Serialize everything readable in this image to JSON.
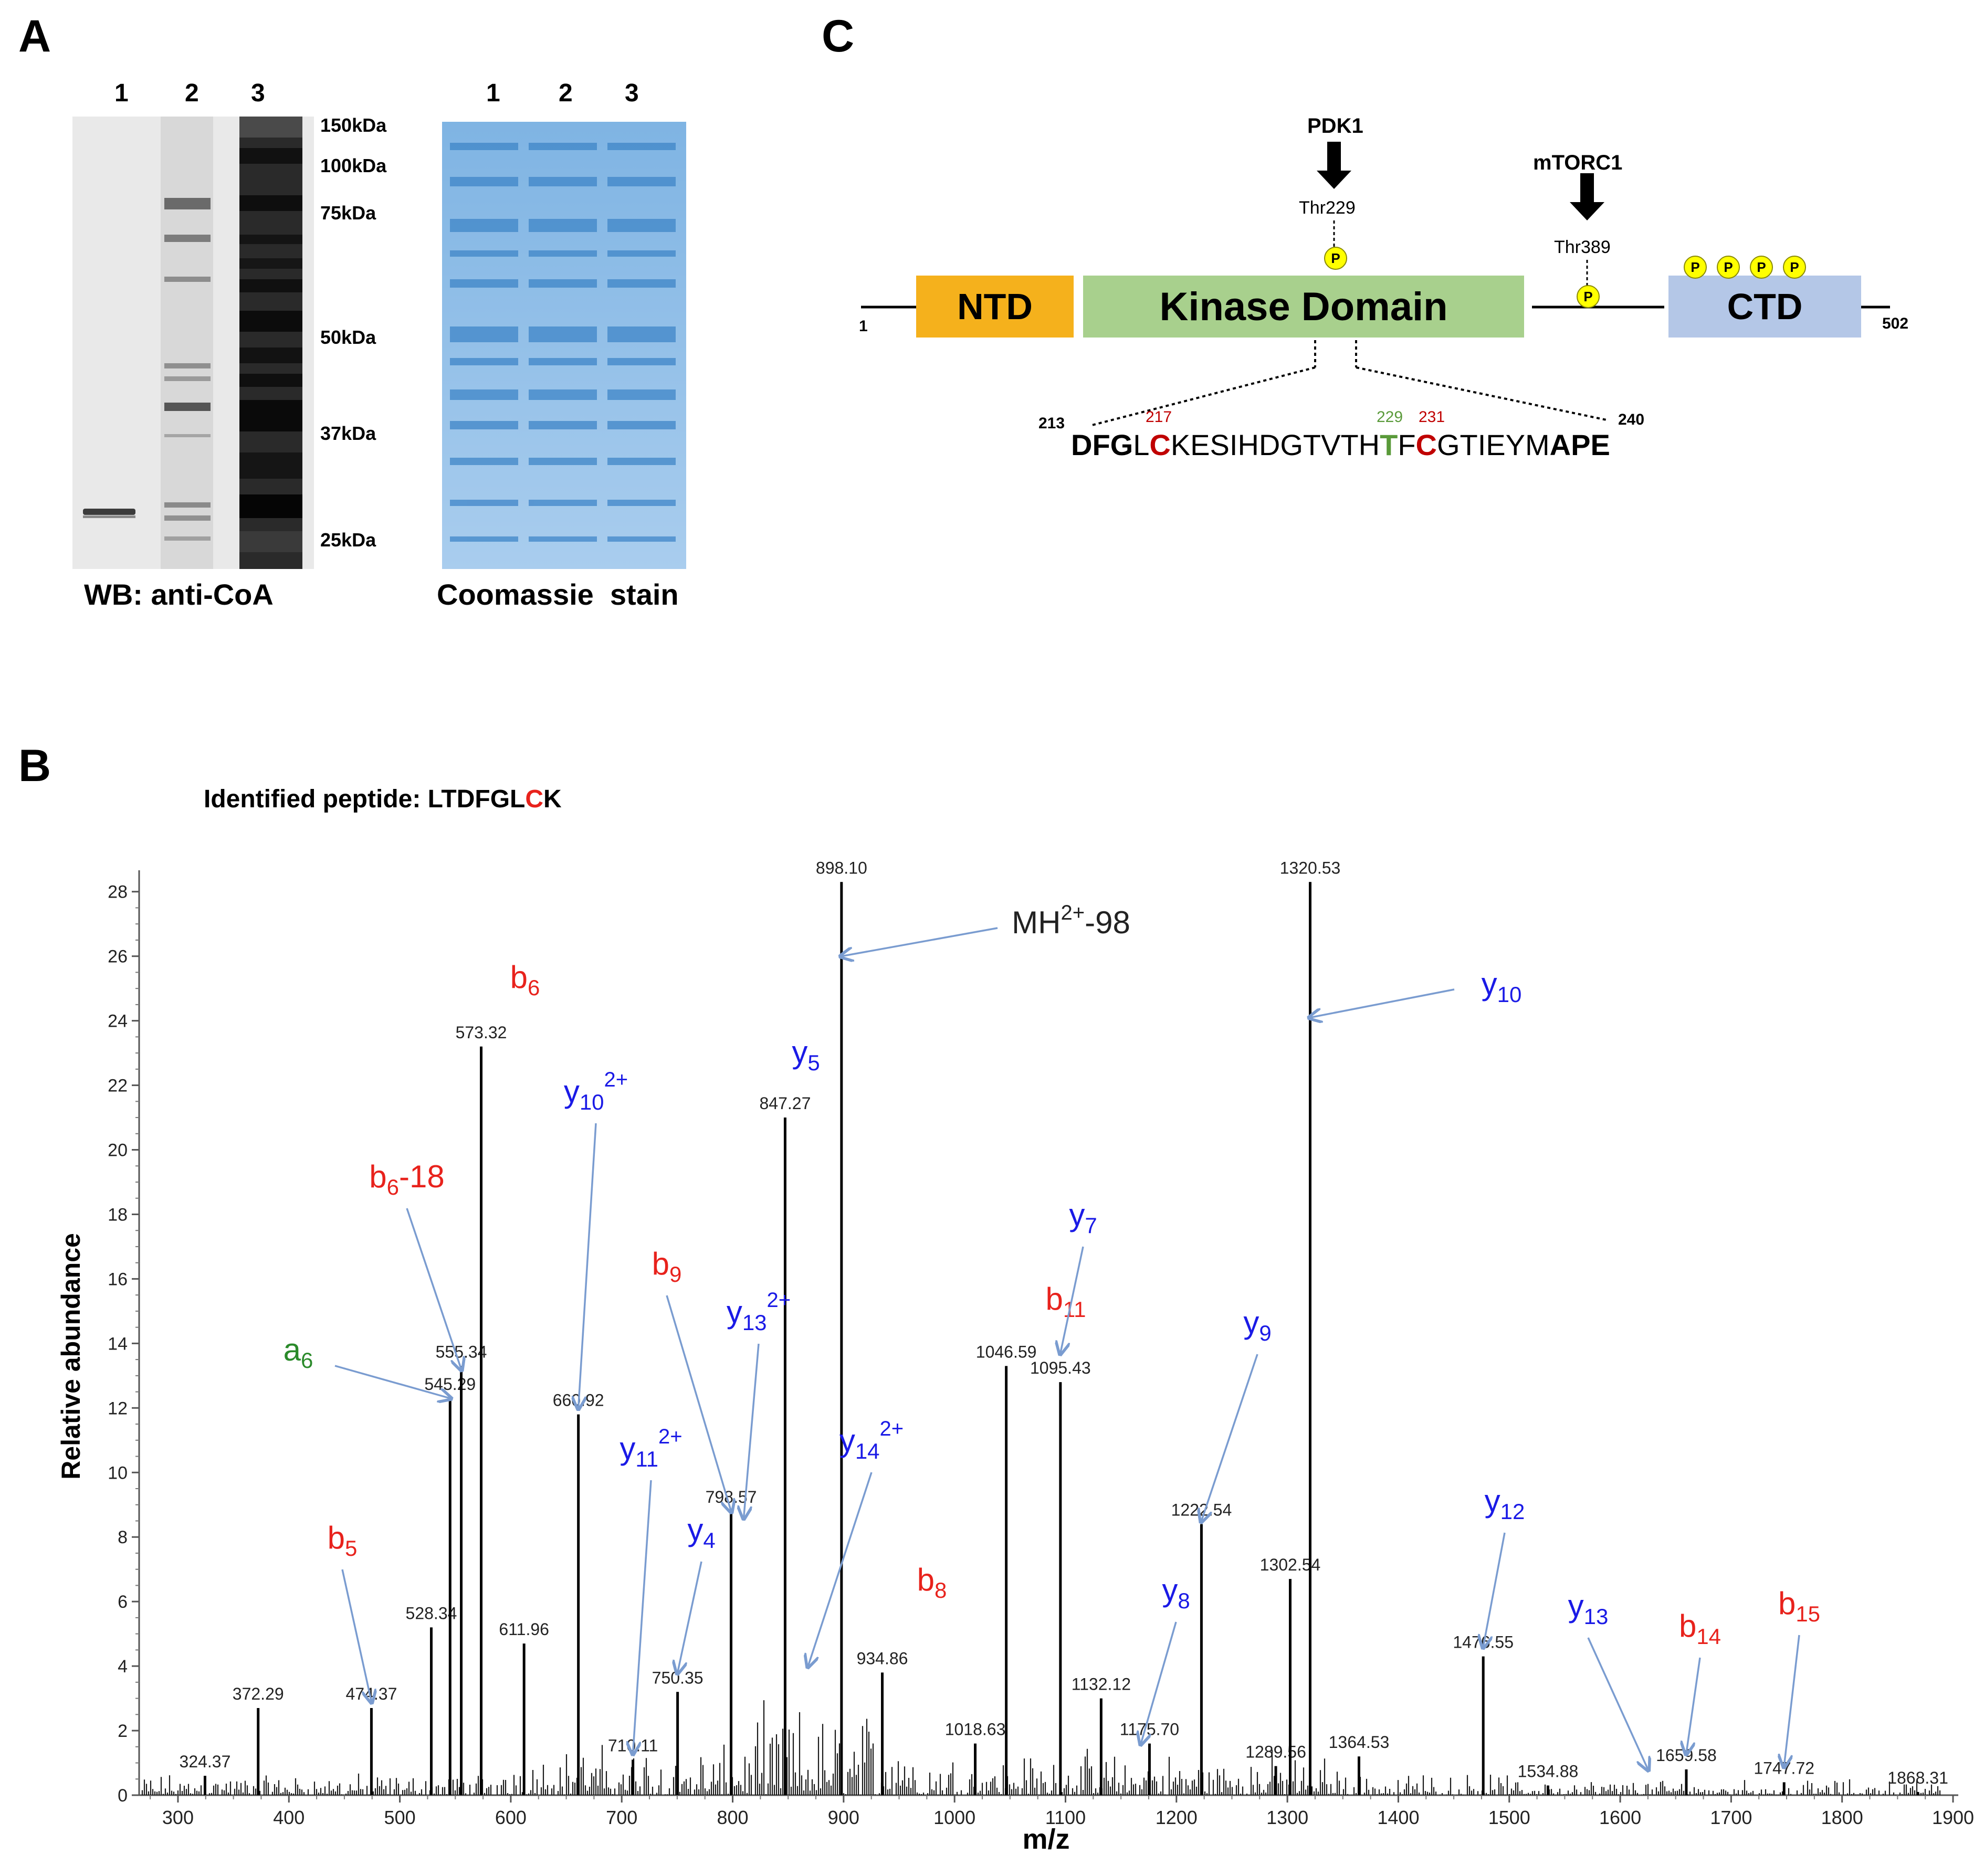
{
  "panel_a": {
    "label": "A",
    "wb_lanes": [
      "1",
      "2",
      "3"
    ],
    "coomassie_lanes": [
      "1",
      "2",
      "3"
    ],
    "markers": [
      "150kDa",
      "100kDa",
      "75kDa",
      "50kDa",
      "37kDa",
      "25kDa"
    ],
    "wb_caption": "WB: anti-CoA",
    "coomassie_caption": "Coomassie  stain"
  },
  "panel_c": {
    "label": "C",
    "pdk1": "PDK1",
    "thr229": "Thr229",
    "mtorc1": "mTORC1",
    "thr389": "Thr389",
    "phospho": "P",
    "ntd": "NTD",
    "kinase": "Kinase Domain",
    "ctd": "CTD",
    "start_residue": "1",
    "end_residue": "502",
    "seq_start": "213",
    "seq_end": "240",
    "pos217": "217",
    "pos229": "229",
    "pos231": "231",
    "sequence_segments": [
      {
        "text": "DFG",
        "style": "bold"
      },
      {
        "text": "L",
        "style": "plain"
      },
      {
        "text": "C",
        "style": "red"
      },
      {
        "text": "KESIHDGTVTH",
        "style": "plain"
      },
      {
        "text": "T",
        "style": "green"
      },
      {
        "text": "F",
        "style": "plain"
      },
      {
        "text": "C",
        "style": "red"
      },
      {
        "text": "GTIEYM",
        "style": "plain"
      },
      {
        "text": "APE",
        "style": "bold"
      }
    ]
  },
  "panel_b": {
    "label": "B",
    "peptide_prefix": "Identified peptide: LTDFGL",
    "peptide_red": "C",
    "peptide_suffix": "K"
  },
  "colors": {
    "b_ion": "#e8221c",
    "y_ion": "#1a1ae6",
    "a_ion": "#2a8a2a",
    "arrow": "#7a9cd0",
    "ntd": "#f5b11c",
    "kinase": "#a8d08d",
    "ctd": "#b4c7e7",
    "phospho": "#ffff00",
    "seq_red": "#c00000",
    "seq_green": "#5a9a3a"
  },
  "chart_data": {
    "type": "bar",
    "title": "",
    "xlabel": "m/z",
    "ylabel": "Relative abundance",
    "xlim": [
      265,
      1900
    ],
    "ylim": [
      0,
      28.5
    ],
    "xticks": [
      300,
      400,
      500,
      600,
      700,
      800,
      900,
      1000,
      1100,
      1200,
      1300,
      1400,
      1500,
      1600,
      1700,
      1800,
      1900
    ],
    "yticks": [
      0,
      2,
      4,
      6,
      8,
      10,
      12,
      14,
      16,
      18,
      20,
      22,
      24,
      26,
      28
    ],
    "labeled_peaks": [
      {
        "x": 324.37,
        "y": 0.6,
        "label": "324.37"
      },
      {
        "x": 372.29,
        "y": 2.7,
        "label": "372.29"
      },
      {
        "x": 474.37,
        "y": 2.7,
        "label": "474.37"
      },
      {
        "x": 528.34,
        "y": 5.2,
        "label": "528.34"
      },
      {
        "x": 545.29,
        "y": 12.3,
        "label": "545.29"
      },
      {
        "x": 555.34,
        "y": 13.3,
        "label": "555.34"
      },
      {
        "x": 573.32,
        "y": 23.2,
        "label": "573.32"
      },
      {
        "x": 611.96,
        "y": 4.7,
        "label": "611.96"
      },
      {
        "x": 660.92,
        "y": 11.8,
        "label": "660.92"
      },
      {
        "x": 710.11,
        "y": 1.1,
        "label": "710.11"
      },
      {
        "x": 750.35,
        "y": 3.2,
        "label": "750.35"
      },
      {
        "x": 798.57,
        "y": 8.8,
        "label": "798.57"
      },
      {
        "x": 847.27,
        "y": 21.0,
        "label": "847.27"
      },
      {
        "x": 898.1,
        "y": 28.3,
        "label": "898.10"
      },
      {
        "x": 934.86,
        "y": 3.8,
        "label": "934.86"
      },
      {
        "x": 1018.63,
        "y": 1.6,
        "label": "1018.63"
      },
      {
        "x": 1046.59,
        "y": 13.3,
        "label": "1046.59"
      },
      {
        "x": 1095.43,
        "y": 12.8,
        "label": "1095.43"
      },
      {
        "x": 1132.12,
        "y": 3.0,
        "label": "1132.12"
      },
      {
        "x": 1175.7,
        "y": 1.6,
        "label": "1175.70"
      },
      {
        "x": 1222.54,
        "y": 8.4,
        "label": "1222.54"
      },
      {
        "x": 1289.56,
        "y": 0.9,
        "label": "1289.56"
      },
      {
        "x": 1302.54,
        "y": 6.7,
        "label": "1302.54"
      },
      {
        "x": 1320.53,
        "y": 28.3,
        "label": "1320.53"
      },
      {
        "x": 1364.53,
        "y": 1.2,
        "label": "1364.53"
      },
      {
        "x": 1476.55,
        "y": 4.3,
        "label": "1476.55"
      },
      {
        "x": 1534.88,
        "y": 0.3,
        "label": "1534.88"
      },
      {
        "x": 1659.58,
        "y": 0.8,
        "label": "1659.58"
      },
      {
        "x": 1747.72,
        "y": 0.4,
        "label": "1747.72"
      },
      {
        "x": 1868.31,
        "y": 0.1,
        "label": "1868.31"
      }
    ],
    "ion_annotations": [
      {
        "ion": "b",
        "sub": "6",
        "sup": "",
        "suffix": "",
        "type": "b",
        "x": 573.32
      },
      {
        "ion": "b",
        "sub": "6",
        "sup": "",
        "suffix": "-18",
        "type": "b",
        "x": 555.34
      },
      {
        "ion": "a",
        "sub": "6",
        "sup": "",
        "suffix": "",
        "type": "a",
        "x": 545.29
      },
      {
        "ion": "b",
        "sub": "5",
        "sup": "",
        "suffix": "",
        "type": "b",
        "x": 474.37
      },
      {
        "ion": "y",
        "sub": "10",
        "sup": "2+",
        "suffix": "",
        "type": "y",
        "x": 660.92
      },
      {
        "ion": "y",
        "sub": "5",
        "sup": "",
        "suffix": "",
        "type": "y",
        "x": 847.27
      },
      {
        "ion": "y",
        "sub": "11",
        "sup": "2+",
        "suffix": "",
        "type": "y",
        "x": 710.11
      },
      {
        "ion": "y",
        "sub": "4",
        "sup": "",
        "suffix": "",
        "type": "y",
        "x": 750.35
      },
      {
        "ion": "b",
        "sub": "9",
        "sup": "",
        "suffix": "",
        "type": "b",
        "x": 798.57
      },
      {
        "ion": "y",
        "sub": "13",
        "sup": "2+",
        "suffix": "",
        "type": "y",
        "x": 810.0
      },
      {
        "ion": "y",
        "sub": "14",
        "sup": "2+",
        "suffix": "",
        "type": "y",
        "x": 868.0
      },
      {
        "ion": "MH",
        "sub": "",
        "sup": "2+",
        "suffix": "-98",
        "type": "m",
        "x": 898.1
      },
      {
        "ion": "b",
        "sub": "8",
        "sup": "",
        "suffix": "",
        "type": "b",
        "x": 934.86
      },
      {
        "ion": "b",
        "sub": "11",
        "sup": "",
        "suffix": "",
        "type": "b",
        "x": 1046.59
      },
      {
        "ion": "y",
        "sub": "7",
        "sup": "",
        "suffix": "",
        "type": "y",
        "x": 1095.43
      },
      {
        "ion": "y",
        "sub": "8",
        "sup": "",
        "suffix": "",
        "type": "y",
        "x": 1175.7
      },
      {
        "ion": "y",
        "sub": "9",
        "sup": "",
        "suffix": "",
        "type": "y",
        "x": 1222.54
      },
      {
        "ion": "y",
        "sub": "10",
        "sup": "",
        "suffix": "",
        "type": "y",
        "x": 1320.53
      },
      {
        "ion": "y",
        "sub": "12",
        "sup": "",
        "suffix": "",
        "type": "y",
        "x": 1476.55
      },
      {
        "ion": "y",
        "sub": "13",
        "sup": "",
        "suffix": "",
        "type": "y",
        "x": 1625.0
      },
      {
        "ion": "b",
        "sub": "14",
        "sup": "",
        "suffix": "",
        "type": "b",
        "x": 1659.58
      },
      {
        "ion": "b",
        "sub": "15",
        "sup": "",
        "suffix": "",
        "type": "b",
        "x": 1747.72
      }
    ]
  }
}
